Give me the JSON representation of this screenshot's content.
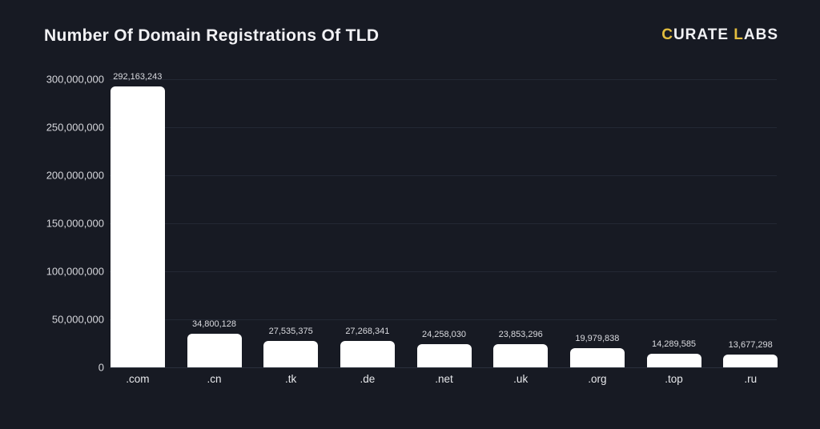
{
  "page": {
    "background_color": "#171a23",
    "accent_color": "#e2bd3e",
    "bar_color": "#ffffff",
    "gridline_color": "#232834"
  },
  "header": {
    "title": "Number Of Domain Registrations Of TLD",
    "logo": {
      "name": "CURATE LABS",
      "parts": [
        {
          "text": "C",
          "accent": true
        },
        {
          "text": "URATE ",
          "accent": false
        },
        {
          "text": "L",
          "accent": true
        },
        {
          "text": "ABS",
          "accent": false
        }
      ]
    }
  },
  "chart_data": {
    "type": "bar",
    "title": "Number Of Domain Registrations Of TLD",
    "xlabel": "",
    "ylabel": "",
    "ylim": [
      0,
      300000000
    ],
    "grid": true,
    "legend": "none",
    "y_tick_labels": [
      "300,000,000",
      "250,000,000",
      "200,000,000",
      "150,000,000",
      "100,000,000",
      "50,000,000",
      "0"
    ],
    "categories": [
      ".com",
      ".cn",
      ".tk",
      ".de",
      ".net",
      ".uk",
      ".org",
      ".top",
      ".ru"
    ],
    "values": [
      292163243,
      34800128,
      27535375,
      27268341,
      24258030,
      23853296,
      19979838,
      14289585,
      13677298
    ],
    "value_labels": [
      "292,163,243",
      "34,800,128",
      "27,535,375",
      "27,268,341",
      "24,258,030",
      "23,853,296",
      "19,979,838",
      "14,289,585",
      "13,677,298"
    ]
  }
}
